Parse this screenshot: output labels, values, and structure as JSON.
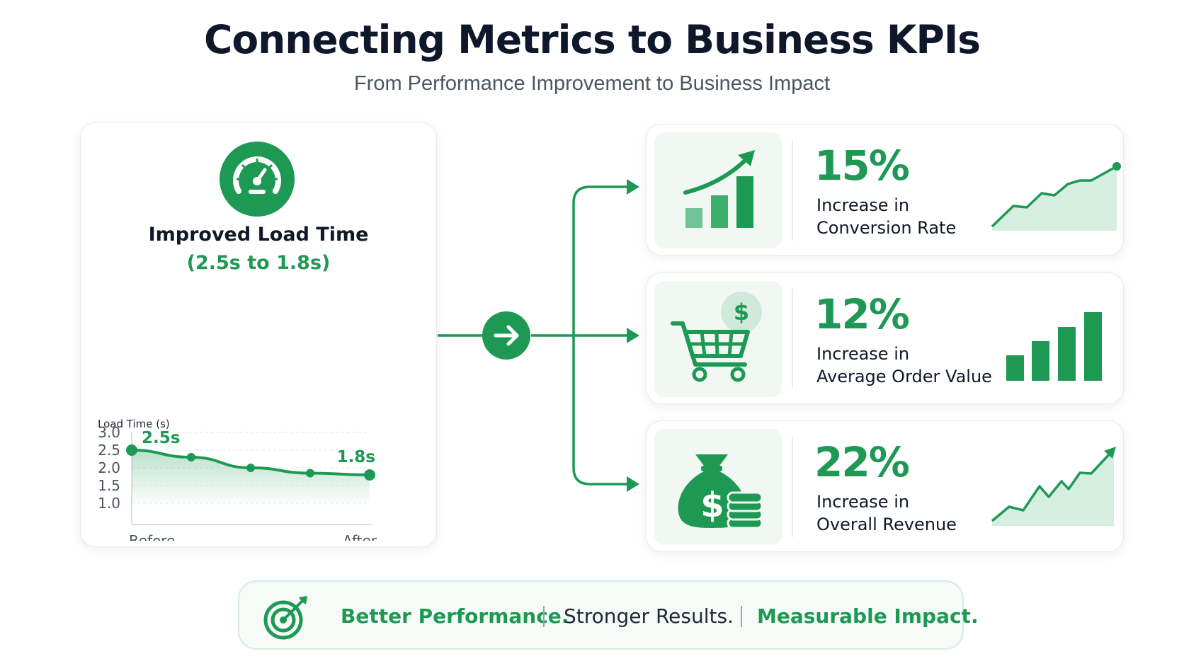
{
  "header": {
    "title": "Connecting Metrics to Business KPIs",
    "subtitle": "From Performance Improvement to Business Impact"
  },
  "load_time": {
    "icon": "speedometer-icon",
    "title": "Improved Load Time",
    "range": "(2.5s to 1.8s)"
  },
  "chart_data": {
    "type": "line",
    "ylabel": "Load Time (s)",
    "xlabel": "",
    "x_tick_labels": [
      "Before",
      "After"
    ],
    "y_ticks": [
      "3.0",
      "2.5",
      "2.0",
      "1.5",
      "1.0"
    ],
    "ylim": [
      1.0,
      3.0
    ],
    "grid": true,
    "series": [
      {
        "values": [
          2.5,
          2.3,
          2.0,
          1.85,
          1.8
        ]
      }
    ],
    "annotations": [
      "2.5s",
      "1.8s"
    ]
  },
  "flow": {
    "arrow_icon": "arrow-right-icon"
  },
  "kpis": [
    {
      "value": "15%",
      "label_line1": "Increase in",
      "label_line2": "Conversion Rate",
      "icon": "growth-bar-chart-icon",
      "trend": "rising-area-line"
    },
    {
      "value": "12%",
      "label_line1": "Increase in",
      "label_line2": "Average Order Value",
      "icon": "shopping-cart-dollar-icon",
      "trend": "rising-bars"
    },
    {
      "value": "22%",
      "label_line1": "Increase in",
      "label_line2": "Overall Revenue",
      "icon": "money-bag-coins-icon",
      "trend": "rising-area-arrow"
    }
  ],
  "footer": {
    "icon": "target-icon",
    "part1": "Better Performance.",
    "part2": "Stronger Results.",
    "part3": "Measurable Impact."
  },
  "colors": {
    "accent": "#1e9954",
    "accent_light": "#d3ecdd",
    "text_dark": "#111827",
    "text_muted": "#4b5563"
  }
}
